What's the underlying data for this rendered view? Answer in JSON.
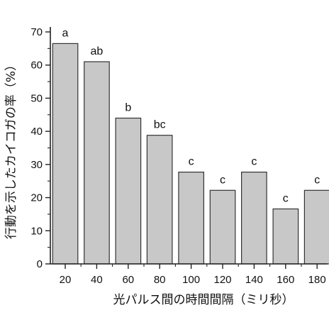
{
  "chart_data": {
    "type": "bar",
    "categories": [
      "20",
      "40",
      "60",
      "80",
      "100",
      "120",
      "140",
      "160",
      "180"
    ],
    "values": [
      66.5,
      61,
      44,
      38.8,
      27.7,
      22.2,
      27.7,
      16.6,
      22.2
    ],
    "significance": [
      "a",
      "ab",
      "b",
      "bc",
      "c",
      "c",
      "c",
      "c",
      "c"
    ],
    "xlabel": "光パルス間の時間間隔（ミリ秒）",
    "ylabel": "行動を示したカイコガの率（%）",
    "ylim": [
      0,
      70
    ],
    "yticks": [
      "0",
      "10",
      "20",
      "30",
      "40",
      "50",
      "60",
      "70"
    ],
    "grid": false,
    "colors": {
      "bar_fill": "#c8c8c8",
      "bar_stroke": "#333333"
    }
  }
}
